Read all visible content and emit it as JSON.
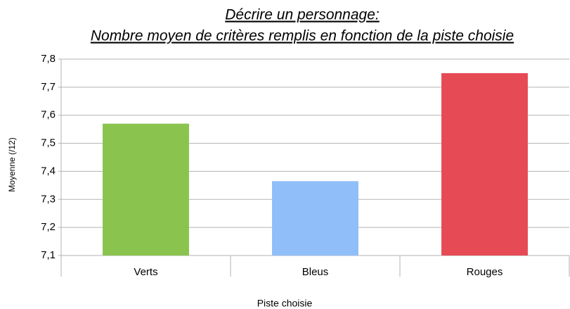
{
  "chart_data": {
    "type": "bar",
    "title": "Décrire un personnage:",
    "subtitle": "Nombre moyen de critères remplis en fonction de la piste choisie",
    "x_label": "Piste choisie",
    "y_label": "Moyenne (/12)",
    "categories": [
      "Verts",
      "Bleus",
      "Rouges"
    ],
    "values": [
      7.57,
      7.365,
      7.75
    ],
    "colors": [
      "#8bc34f",
      "#8fbef9",
      "#e64a55"
    ],
    "ylim": [
      7.1,
      7.8
    ],
    "yticks": [
      {
        "value": 7.1,
        "label": "7,1"
      },
      {
        "value": 7.2,
        "label": "7,2"
      },
      {
        "value": 7.3,
        "label": "7,3"
      },
      {
        "value": 7.4,
        "label": "7,4"
      },
      {
        "value": 7.5,
        "label": "7,5"
      },
      {
        "value": 7.6,
        "label": "7,6"
      },
      {
        "value": 7.7,
        "label": "7,7"
      },
      {
        "value": 7.8,
        "label": "7,8"
      }
    ],
    "grid": true
  }
}
